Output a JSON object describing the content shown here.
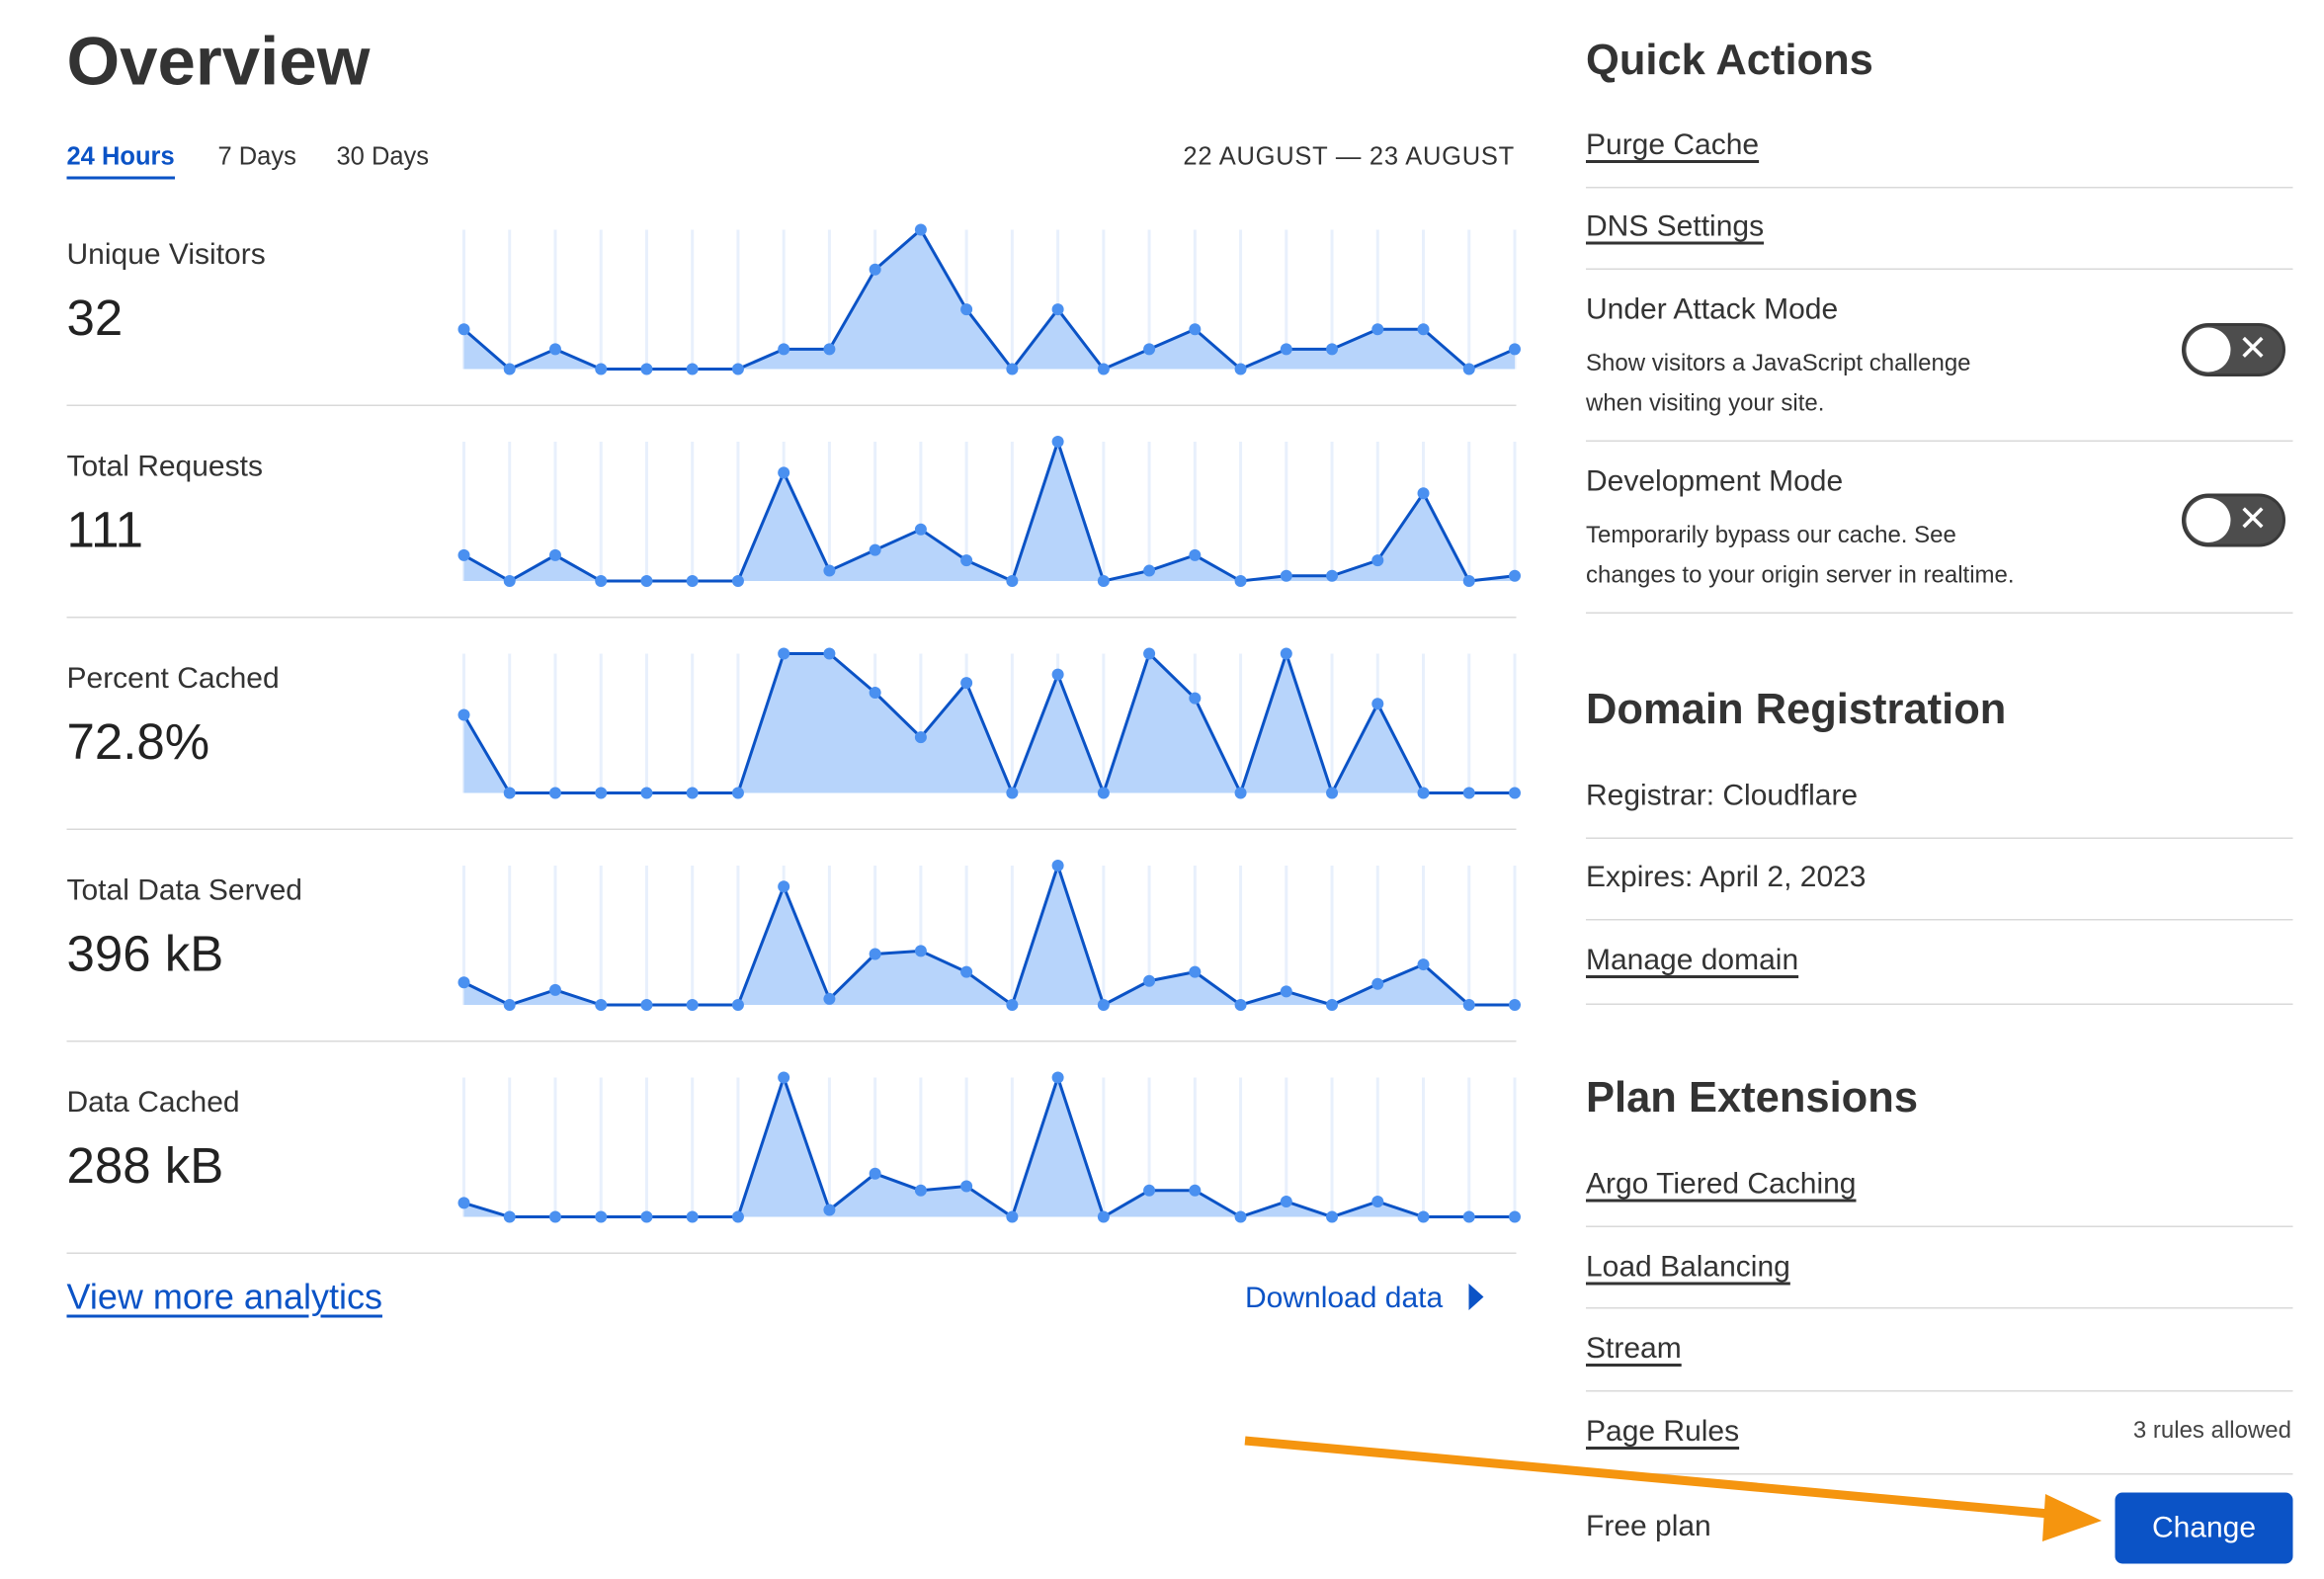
{
  "overview": {
    "title": "Overview",
    "tabs": [
      {
        "label": "24 Hours",
        "active": true
      },
      {
        "label": "7 Days",
        "active": false
      },
      {
        "label": "30 Days",
        "active": false
      }
    ],
    "date_range": "22 AUGUST — 23 AUGUST",
    "metrics": [
      {
        "label": "Unique Visitors",
        "value": "32",
        "series": [
          2,
          0,
          1,
          0,
          0,
          0,
          0,
          1,
          1,
          5,
          7,
          3,
          0,
          3,
          0,
          1,
          2,
          0,
          1,
          1,
          2,
          2,
          0,
          1
        ]
      },
      {
        "label": "Total Requests",
        "value": "111",
        "series": [
          5,
          0,
          5,
          0,
          0,
          0,
          0,
          21,
          2,
          6,
          10,
          4,
          0,
          27,
          0,
          2,
          5,
          0,
          1,
          1,
          4,
          17,
          0,
          1
        ]
      },
      {
        "label": "Percent Cached",
        "value": "72.8%",
        "series": [
          56,
          0,
          0,
          0,
          0,
          0,
          0,
          100,
          100,
          72,
          40,
          79,
          0,
          85,
          0,
          100,
          68,
          0,
          100,
          0,
          64,
          0,
          0,
          0
        ]
      },
      {
        "label": "Total Data Served",
        "value": "396 kB",
        "series": [
          15,
          0,
          10,
          0,
          0,
          0,
          0,
          79,
          4,
          34,
          36,
          22,
          0,
          93,
          0,
          16,
          22,
          0,
          9,
          0,
          14,
          27,
          0,
          0
        ]
      },
      {
        "label": "Data Cached",
        "value": "288 kB",
        "series": [
          10,
          0,
          0,
          0,
          0,
          0,
          0,
          100,
          5,
          31,
          19,
          22,
          0,
          100,
          0,
          19,
          19,
          0,
          11,
          0,
          11,
          0,
          0,
          0
        ]
      }
    ],
    "view_more": "View more analytics",
    "download": "Download data",
    "colors": {
      "line": "#0b53c6",
      "fill": "#b7d4fb",
      "point": "#4a90f0",
      "accent": "#0b53c6"
    }
  },
  "quick_actions": {
    "title": "Quick Actions",
    "purge_cache": "Purge Cache",
    "dns_settings": "DNS Settings",
    "under_attack": {
      "title": "Under Attack Mode",
      "desc1": "Show visitors a JavaScript challenge",
      "desc2": "when visiting your site.",
      "enabled": false
    },
    "dev_mode": {
      "title": "Development Mode",
      "desc1": "Temporarily bypass our cache. See",
      "desc2": "changes to your origin server in realtime.",
      "enabled": false
    }
  },
  "domain_registration": {
    "title": "Domain Registration",
    "registrar": "Registrar: Cloudflare",
    "expires": "Expires: April 2, 2023",
    "manage": "Manage domain"
  },
  "plan_extensions": {
    "title": "Plan Extensions",
    "items": [
      "Argo Tiered Caching",
      "Load Balancing",
      "Stream",
      "Page Rules"
    ],
    "page_rules_note": "3 rules allowed",
    "plan": "Free plan",
    "change": "Change"
  },
  "annotation": {
    "arrow_color": "#f5950f"
  }
}
